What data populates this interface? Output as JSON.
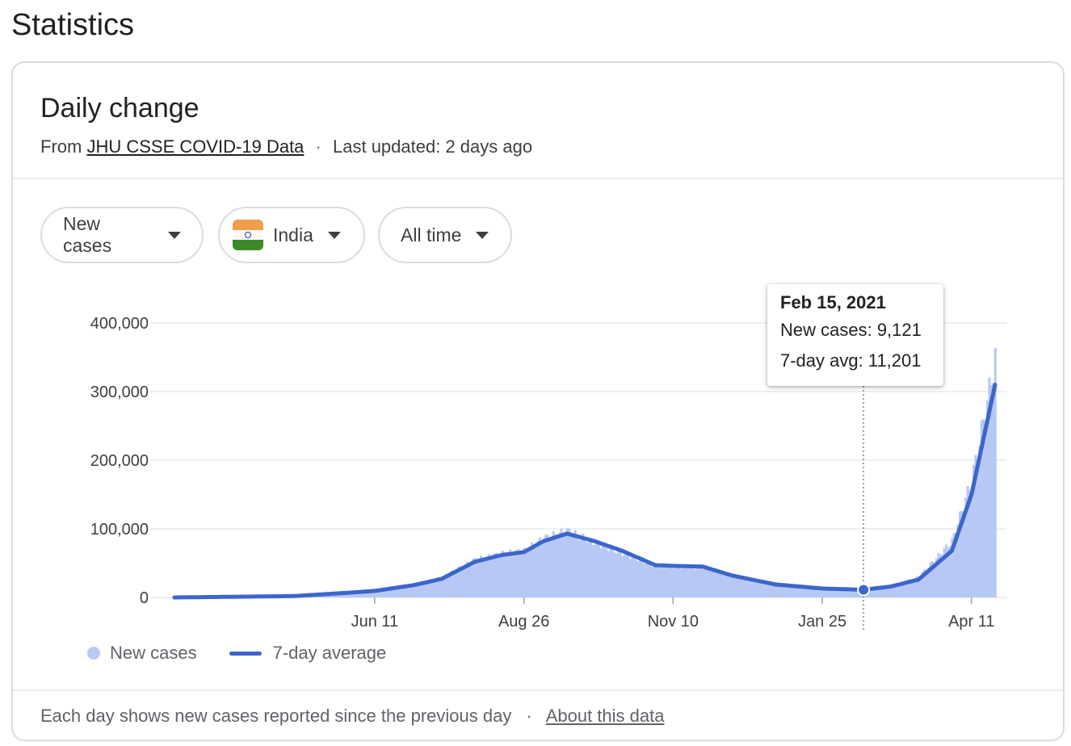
{
  "page": {
    "title": "Statistics"
  },
  "card": {
    "title": "Daily change",
    "source_prefix": "From",
    "source_link": "JHU CSSE COVID-19 Data",
    "separator": "·",
    "last_updated": "Last updated: 2 days ago"
  },
  "filters": {
    "metric": "New cases",
    "country": "India",
    "range": "All time"
  },
  "tooltip": {
    "date": "Feb 15, 2021",
    "new_cases": "New cases: 9,121",
    "avg": "7-day avg: 11,201"
  },
  "legend": {
    "bars": "New cases",
    "line": "7-day average"
  },
  "footer": {
    "note": "Each day shows new cases reported since the previous day",
    "separator": "·",
    "link": "About this data"
  },
  "colors": {
    "bar": "#b7c8f4",
    "line": "#3c66cc",
    "grid": "#e8eaed",
    "axis_text": "#3c4043"
  },
  "chart_data": {
    "type": "bar",
    "title": "Daily change",
    "series": [
      {
        "name": "New cases",
        "kind": "bar"
      },
      {
        "name": "7-day average",
        "kind": "line"
      }
    ],
    "x_tick_labels": [
      "Jun 11",
      "Aug 26",
      "Nov 10",
      "Jan 25",
      "Apr 11"
    ],
    "y_tick_labels": [
      "0",
      "100,000",
      "200,000",
      "300,000",
      "400,000"
    ],
    "ylim": [
      0,
      400000
    ],
    "points": [
      {
        "date": "Mar 1, 2020",
        "day": 0,
        "new_cases": 0,
        "avg": 0
      },
      {
        "date": "Apr 1, 2020",
        "day": 31,
        "new_cases": 1200,
        "avg": 1000
      },
      {
        "date": "May 1, 2020",
        "day": 61,
        "new_cases": 2200,
        "avg": 2000
      },
      {
        "date": "Jun 1, 2020",
        "day": 92,
        "new_cases": 8000,
        "avg": 7500
      },
      {
        "date": "Jun 11, 2020",
        "day": 102,
        "new_cases": 10000,
        "avg": 9500
      },
      {
        "date": "Jul 1, 2020",
        "day": 122,
        "new_cases": 19000,
        "avg": 18000
      },
      {
        "date": "Jul 15, 2020",
        "day": 136,
        "new_cases": 29000,
        "avg": 27000
      },
      {
        "date": "Aug 1, 2020",
        "day": 153,
        "new_cases": 55000,
        "avg": 52000
      },
      {
        "date": "Aug 15, 2020",
        "day": 167,
        "new_cases": 64000,
        "avg": 62000
      },
      {
        "date": "Aug 26, 2020",
        "day": 178,
        "new_cases": 68000,
        "avg": 66000
      },
      {
        "date": "Sep 5, 2020",
        "day": 188,
        "new_cases": 86000,
        "avg": 82000
      },
      {
        "date": "Sep 17, 2020",
        "day": 200,
        "new_cases": 97000,
        "avg": 93000
      },
      {
        "date": "Oct 1, 2020",
        "day": 214,
        "new_cases": 80000,
        "avg": 82000
      },
      {
        "date": "Oct 15, 2020",
        "day": 228,
        "new_cases": 64000,
        "avg": 68000
      },
      {
        "date": "Nov 1, 2020",
        "day": 245,
        "new_cases": 46000,
        "avg": 47000
      },
      {
        "date": "Nov 10, 2020",
        "day": 254,
        "new_cases": 45000,
        "avg": 46000
      },
      {
        "date": "Nov 25, 2020",
        "day": 269,
        "new_cases": 44000,
        "avg": 45000
      },
      {
        "date": "Dec 10, 2020",
        "day": 284,
        "new_cases": 31000,
        "avg": 32000
      },
      {
        "date": "Jan 1, 2021",
        "day": 306,
        "new_cases": 19000,
        "avg": 19000
      },
      {
        "date": "Jan 25, 2021",
        "day": 330,
        "new_cases": 13000,
        "avg": 13000
      },
      {
        "date": "Feb 15, 2021",
        "day": 351,
        "new_cases": 9121,
        "avg": 11201
      },
      {
        "date": "Mar 1, 2021",
        "day": 365,
        "new_cases": 16000,
        "avg": 16000
      },
      {
        "date": "Mar 15, 2021",
        "day": 379,
        "new_cases": 30000,
        "avg": 26000
      },
      {
        "date": "Apr 1, 2021",
        "day": 396,
        "new_cases": 82000,
        "avg": 68000
      },
      {
        "date": "Apr 11, 2021",
        "day": 406,
        "new_cases": 170000,
        "avg": 150000
      },
      {
        "date": "Apr 20, 2021",
        "day": 415,
        "new_cases": 300000,
        "avg": 270000
      },
      {
        "date": "Apr 23, 2021",
        "day": 418,
        "new_cases": 350000,
        "avg": 310000
      }
    ],
    "x_tick_days": [
      102,
      178,
      254,
      330,
      406
    ],
    "selected_day": 351
  }
}
